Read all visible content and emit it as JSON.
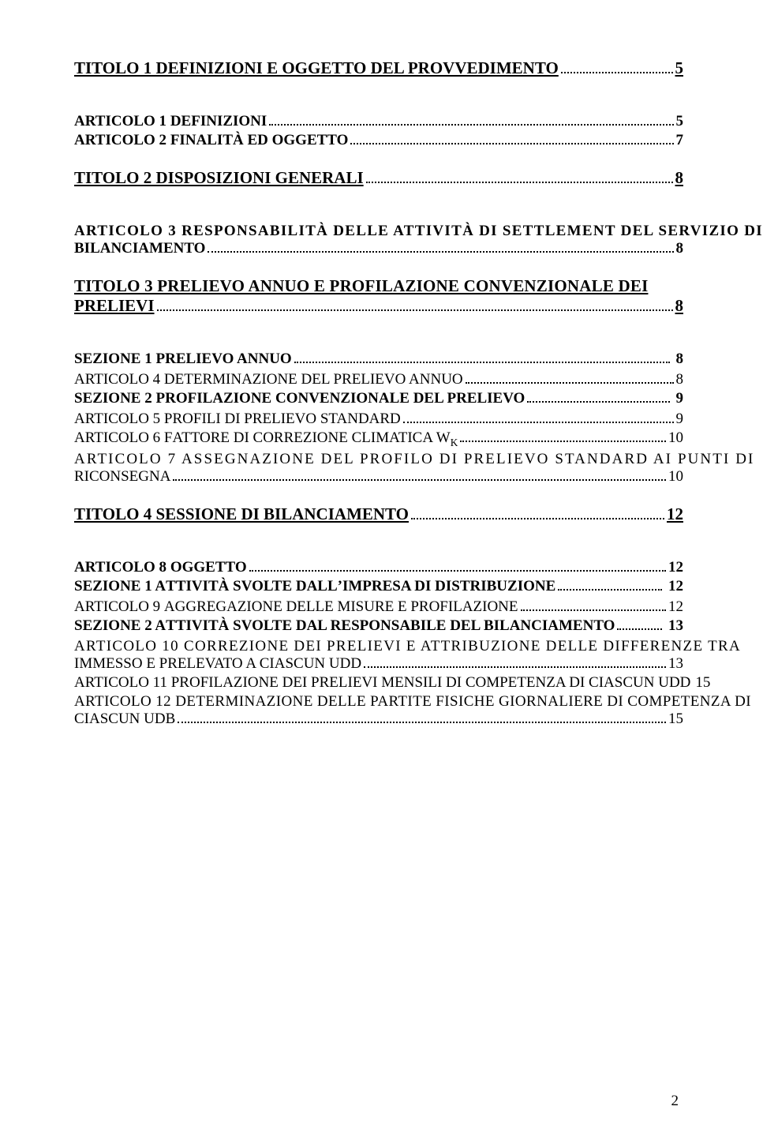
{
  "colors": {
    "text": "#000000",
    "background": "#ffffff"
  },
  "page_number": "2",
  "toc": {
    "t1": {
      "label": "TITOLO 1 DEFINIZIONI E OGGETTO DEL PROVVEDIMENTO",
      "pg": "5"
    },
    "a1": {
      "lead": "A",
      "rest": "RTICOLO 1 ",
      "tail_lead": "D",
      "tail_rest": "EFINIZIONI",
      "pg": "5"
    },
    "a2": {
      "lead": "A",
      "rest": "RTICOLO 2 ",
      "tail_lead": "F",
      "tail_rest": "INALITÀ ED OGGETTO",
      "pg": "7"
    },
    "t2": {
      "label": "TITOLO 2 DISPOSIZIONI GENERALI",
      "pg": "8"
    },
    "a3": {
      "line1": "ARTICOLO 3 RESPONSABILITÀ DELLE ATTIVITÀ DI SETTLEMENT DEL SERVIZIO DI",
      "line2_lead": "",
      "line2_rest": "BILANCIAMENTO",
      "pg": "8"
    },
    "t3": {
      "line1": "TITOLO 3 PRELIEVO ANNUO E PROFILAZIONE CONVENZIONALE DEI",
      "line2": "PRELIEVI",
      "pg": "8"
    },
    "s1": {
      "label": "SEZIONE 1 PRELIEVO ANNUO",
      "pg": " 8"
    },
    "a4": {
      "lead": "A",
      "rest": "RTICOLO 4 ",
      "tail_lead": "D",
      "tail_rest": "ETERMINAZIONE DEL PRELIEVO ANNUO",
      "pg": "8"
    },
    "s2": {
      "label": "SEZIONE 2 PROFILAZIONE CONVENZIONALE DEL PRELIEVO",
      "pg": " 9"
    },
    "a5": {
      "lead": "A",
      "rest": "RTICOLO 5 ",
      "tail_lead": "P",
      "tail_rest": "ROFILI DI PRELIEVO STANDARD",
      "pg": "9"
    },
    "a6": {
      "lead": "A",
      "rest": "RTICOLO 6 ",
      "tail_lead": "F",
      "tail_rest": "ATTORE DI CORREZIONE CLIMATICA ",
      "wk": "W",
      "ksub": "K",
      "pg": "10"
    },
    "a7": {
      "line1": "ARTICOLO 7 ASSEGNAZIONE DEL PROFILO DI PRELIEVO STANDARD AI PUNTI DI",
      "line2": "RICONSEGNA",
      "pg": "10"
    },
    "t4": {
      "label": "TITOLO 4 SESSIONE DI BILANCIAMENTO",
      "pg": "12"
    },
    "a8": {
      "lead": "A",
      "rest": "RTICOLO 8 ",
      "tail_lead": "O",
      "tail_rest": "GGETTO",
      "pg": "12"
    },
    "s3": {
      "label": "SEZIONE 1 ATTIVITÀ SVOLTE DALL’IMPRESA DI DISTRIBUZIONE",
      "pg": " 12"
    },
    "a9": {
      "lead": "A",
      "rest": "RTICOLO 9 ",
      "tail_lead": "A",
      "tail_rest": "GGREGAZIONE DELLE MISURE E PROFILAZIONE",
      "pg": "12"
    },
    "s4": {
      "label": "SEZIONE 2 ATTIVITÀ SVOLTE DAL RESPONSABILE DEL BILANCIAMENTO",
      "pg": " 13"
    },
    "a10": {
      "line1": "ARTICOLO 10 CORREZIONE DEI PRELIEVI E ATTRIBUZIONE DELLE DIFFERENZE TRA",
      "line2": "IMMESSO E PRELEVATO A CIASCUN UDD",
      "pg": "13"
    },
    "a11": {
      "lead": "A",
      "rest": "RTICOLO 11 ",
      "tail_lead": "P",
      "tail_rest": "ROFILAZIONE DEI PRELIEVI MENSILI DI COMPETENZA DI CIASCUN ",
      "udd": "UDD",
      "pg": "15"
    },
    "a12": {
      "line1": "ARTICOLO 12 DETERMINAZIONE DELLE PARTITE FISICHE GIORNALIERE DI COMPETENZA DI",
      "line2_lead": "CIASCUN ",
      "line2_rest": "UDB",
      "pg": "15"
    }
  }
}
